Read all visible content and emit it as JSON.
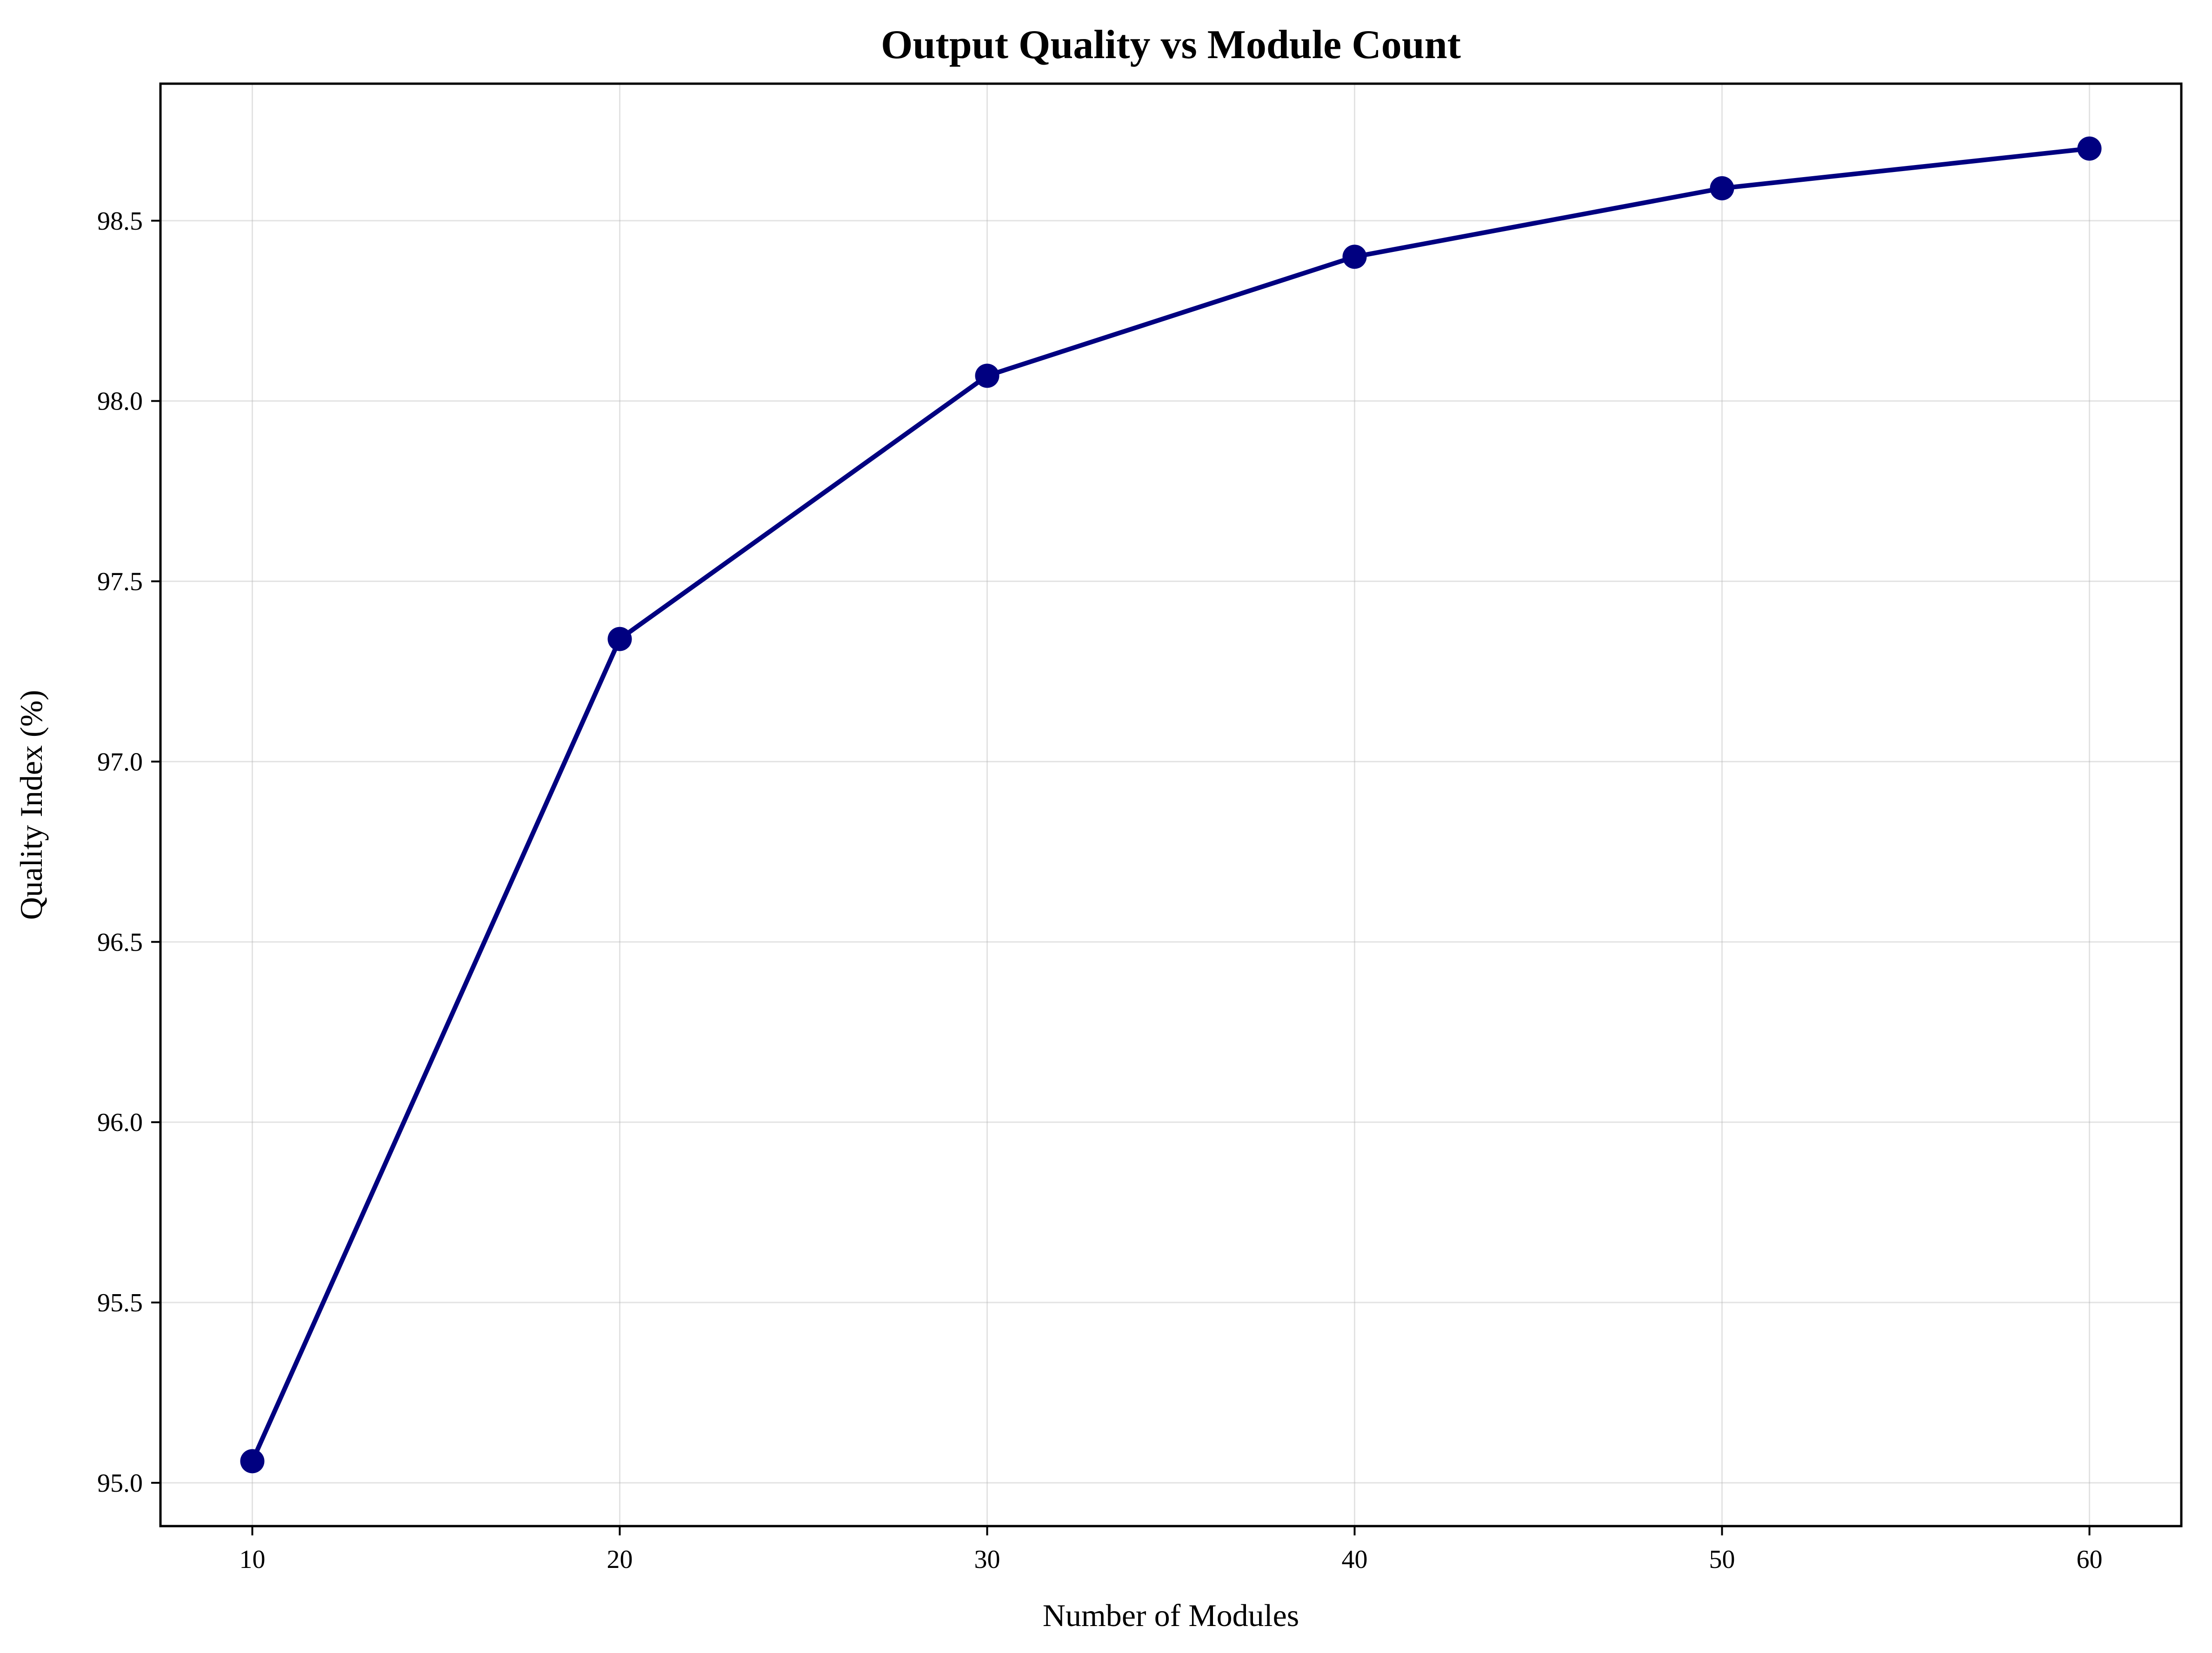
{
  "chart_data": {
    "type": "line",
    "title": "Output Quality vs Module Count",
    "xlabel": "Number of Modules",
    "ylabel": "Quality Index (%)",
    "x": [
      10,
      20,
      30,
      40,
      50,
      60
    ],
    "series": [
      {
        "values": [
          95.06,
          97.34,
          98.07,
          98.4,
          98.59,
          98.7
        ],
        "color": "#000080"
      }
    ],
    "xticks": [
      10,
      20,
      30,
      40,
      50,
      60
    ],
    "xtick_labels": [
      "10",
      "20",
      "30",
      "40",
      "50",
      "60"
    ],
    "yticks": [
      95.0,
      95.5,
      96.0,
      96.5,
      97.0,
      97.5,
      98.0,
      98.5
    ],
    "ytick_labels": [
      "95.0",
      "95.5",
      "96.0",
      "96.5",
      "97.0",
      "97.5",
      "98.0",
      "98.5"
    ],
    "xlim": [
      7.5,
      62.5
    ],
    "ylim": [
      94.88,
      98.88
    ],
    "grid": true,
    "legend": "none"
  }
}
